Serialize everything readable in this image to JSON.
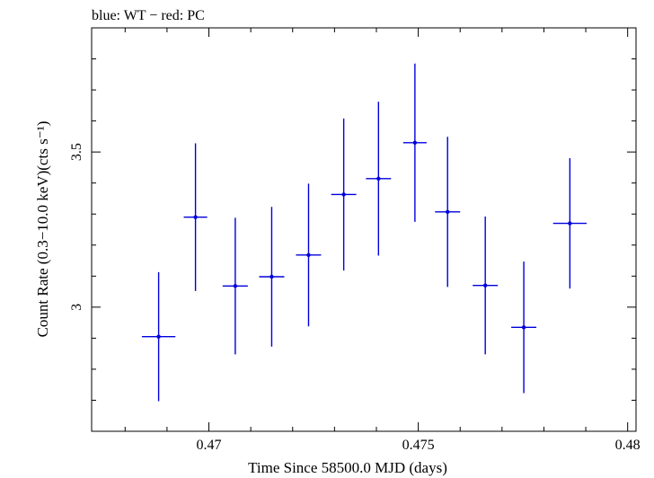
{
  "chart_data": {
    "type": "scatter",
    "title": "blue: WT − red: PC",
    "xlabel": "Time Since 58500.0 MJD (days)",
    "ylabel": "Count Rate (0.3−10.0 keV)(cts s⁻¹)",
    "xlim": [
      0.4672,
      0.4802
    ],
    "ylim": [
      2.6,
      3.9
    ],
    "x_ticks": [
      0.47,
      0.475,
      0.48
    ],
    "x_tick_labels": [
      "0.47",
      "0.475",
      "0.48"
    ],
    "y_ticks": [
      3,
      3.5
    ],
    "y_tick_labels": [
      "3",
      "3.5"
    ],
    "grid": false,
    "series": [
      {
        "color": "#0000dd",
        "points": [
          {
            "x": 0.4688,
            "xerr": 0.0004,
            "y": 2.905,
            "yerr": 0.208
          },
          {
            "x": 0.46968,
            "xerr": 0.00028,
            "y": 3.29,
            "yerr": 0.238
          },
          {
            "x": 0.47063,
            "xerr": 0.0003,
            "y": 3.068,
            "yerr": 0.22
          },
          {
            "x": 0.4715,
            "xerr": 0.0003,
            "y": 3.098,
            "yerr": 0.225
          },
          {
            "x": 0.47238,
            "xerr": 0.0003,
            "y": 3.168,
            "yerr": 0.23
          },
          {
            "x": 0.47322,
            "xerr": 0.0003,
            "y": 3.363,
            "yerr": 0.245
          },
          {
            "x": 0.47405,
            "xerr": 0.0003,
            "y": 3.414,
            "yerr": 0.248
          },
          {
            "x": 0.47492,
            "xerr": 0.00028,
            "y": 3.53,
            "yerr": 0.255
          },
          {
            "x": 0.4757,
            "xerr": 0.0003,
            "y": 3.307,
            "yerr": 0.242
          },
          {
            "x": 0.4766,
            "xerr": 0.0003,
            "y": 3.07,
            "yerr": 0.222
          },
          {
            "x": 0.47752,
            "xerr": 0.0003,
            "y": 2.935,
            "yerr": 0.212
          },
          {
            "x": 0.47862,
            "xerr": 0.0004,
            "y": 3.27,
            "yerr": 0.21
          }
        ]
      }
    ]
  }
}
